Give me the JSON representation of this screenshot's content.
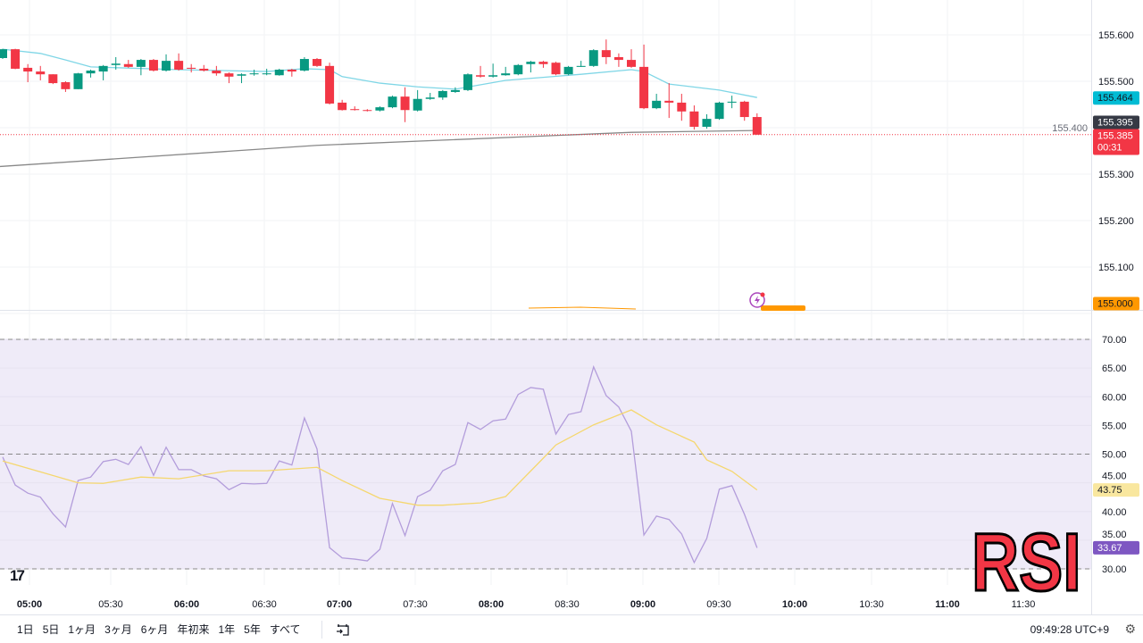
{
  "price_axis": {
    "ticks": [
      "155.600",
      "155.500",
      "155.400",
      "155.300",
      "155.200",
      "155.100",
      "155.000"
    ],
    "tick_values": [
      155.6,
      155.5,
      155.4,
      155.3,
      155.2,
      155.1,
      155.0
    ],
    "ma_fast_label": "155.464",
    "ma_slow_label": "155.395",
    "last_price_label": "155.385",
    "countdown": "00:31",
    "alert_label": "155.000"
  },
  "rsi_axis": {
    "ticks": [
      "70.00",
      "65.00",
      "60.00",
      "55.00",
      "50.00",
      "45.00",
      "40.00",
      "35.00",
      "30.00"
    ],
    "tick_values": [
      70,
      65,
      60,
      55,
      50,
      45,
      40,
      35,
      30
    ],
    "signal_label": "43.75",
    "rsi_label": "33.67"
  },
  "time_axis": [
    "05:00",
    "05:30",
    "06:00",
    "06:30",
    "07:00",
    "07:30",
    "08:00",
    "08:30",
    "09:00",
    "09:30",
    "10:00",
    "10:30",
    "11:00",
    "11:30"
  ],
  "bottom": {
    "ranges": [
      "1日",
      "5日",
      "1ヶ月",
      "3ヶ月",
      "6ヶ月",
      "年初来",
      "1年",
      "5年",
      "すべて"
    ],
    "clock": "09:49:28 UTC+9"
  },
  "overlay_text": "RSI",
  "logo": "TV",
  "colors": {
    "up": "#089981",
    "down": "#f23645",
    "ma_fast": "#7fd6e6",
    "ma_slow": "#888888",
    "rsi": "#b39ddb",
    "signal": "#f5d76e",
    "rsi_bg": "#efebf8",
    "alert": "#ff9800"
  },
  "chart_data": {
    "type": "candlestick",
    "ohlc": [
      [
        155.55,
        155.57,
        155.548,
        155.569
      ],
      [
        155.569,
        155.57,
        155.526,
        155.527
      ],
      [
        155.529,
        155.537,
        155.498,
        155.521
      ],
      [
        155.521,
        155.533,
        155.502,
        155.515
      ],
      [
        155.515,
        155.515,
        155.494,
        155.496
      ],
      [
        155.498,
        155.5,
        155.477,
        155.483
      ],
      [
        155.483,
        155.518,
        155.483,
        155.517
      ],
      [
        155.517,
        155.525,
        155.508,
        155.523
      ],
      [
        155.521,
        155.535,
        155.502,
        155.533
      ],
      [
        155.535,
        155.552,
        155.525,
        155.538
      ],
      [
        155.537,
        155.546,
        155.529,
        155.531
      ],
      [
        155.531,
        155.548,
        155.513,
        155.546
      ],
      [
        155.546,
        155.548,
        155.521,
        155.523
      ],
      [
        155.523,
        155.558,
        155.521,
        155.544
      ],
      [
        155.544,
        155.56,
        155.523,
        155.525
      ],
      [
        155.529,
        155.537,
        155.519,
        155.527
      ],
      [
        155.527,
        155.535,
        155.521,
        155.523
      ],
      [
        155.523,
        155.533,
        155.512,
        155.517
      ],
      [
        155.517,
        155.519,
        155.496,
        155.51
      ],
      [
        155.512,
        155.517,
        155.496,
        155.515
      ],
      [
        155.515,
        155.525,
        155.512,
        155.517
      ],
      [
        155.515,
        155.527,
        155.513,
        155.517
      ],
      [
        155.513,
        155.527,
        155.512,
        155.525
      ],
      [
        155.525,
        155.527,
        155.51,
        155.521
      ],
      [
        155.523,
        155.552,
        155.521,
        155.548
      ],
      [
        155.548,
        155.55,
        155.531,
        155.533
      ],
      [
        155.533,
        155.54,
        155.45,
        155.452
      ],
      [
        155.454,
        155.46,
        155.437,
        155.438
      ],
      [
        155.44,
        155.446,
        155.437,
        155.438
      ],
      [
        155.438,
        155.44,
        155.435,
        155.437
      ],
      [
        155.437,
        155.446,
        155.435,
        155.444
      ],
      [
        155.444,
        155.469,
        155.442,
        155.467
      ],
      [
        155.467,
        155.487,
        155.412,
        155.438
      ],
      [
        155.437,
        155.481,
        155.435,
        155.462
      ],
      [
        155.462,
        155.475,
        155.46,
        155.465
      ],
      [
        155.465,
        155.481,
        155.46,
        155.479
      ],
      [
        155.477,
        155.487,
        155.475,
        155.481
      ],
      [
        155.481,
        155.517,
        155.479,
        155.515
      ],
      [
        155.513,
        155.533,
        155.508,
        155.51
      ],
      [
        155.51,
        155.538,
        155.508,
        155.513
      ],
      [
        155.513,
        155.531,
        155.512,
        155.517
      ],
      [
        155.515,
        155.537,
        155.513,
        155.535
      ],
      [
        155.537,
        155.544,
        155.519,
        155.542
      ],
      [
        155.542,
        155.544,
        155.529,
        155.537
      ],
      [
        155.54,
        155.542,
        155.513,
        155.515
      ],
      [
        155.515,
        155.533,
        155.513,
        155.531
      ],
      [
        155.531,
        155.544,
        155.531,
        155.533
      ],
      [
        155.533,
        155.569,
        155.531,
        155.567
      ],
      [
        155.567,
        155.59,
        155.537,
        155.552
      ],
      [
        155.552,
        155.56,
        155.531,
        155.546
      ],
      [
        155.546,
        155.569,
        155.529,
        155.531
      ],
      [
        155.531,
        155.579,
        155.44,
        155.442
      ],
      [
        155.442,
        155.473,
        155.44,
        155.458
      ],
      [
        155.458,
        155.496,
        155.421,
        155.454
      ],
      [
        155.454,
        155.473,
        155.415,
        155.435
      ],
      [
        155.435,
        155.448,
        155.396,
        155.402
      ],
      [
        155.402,
        155.429,
        155.398,
        155.419
      ],
      [
        155.419,
        155.456,
        155.417,
        155.454
      ],
      [
        155.454,
        155.469,
        155.442,
        155.456
      ],
      [
        155.456,
        155.458,
        155.415,
        155.423
      ],
      [
        155.423,
        155.431,
        155.385,
        155.385
      ]
    ],
    "ma_fast": [
      [
        0,
        155.569
      ],
      [
        3,
        155.56
      ],
      [
        5,
        155.546
      ],
      [
        7,
        155.531
      ],
      [
        14,
        155.525
      ],
      [
        21,
        155.521
      ],
      [
        24,
        155.527
      ],
      [
        26,
        155.525
      ],
      [
        27,
        155.51
      ],
      [
        30,
        155.496
      ],
      [
        33,
        155.488
      ],
      [
        36,
        155.483
      ],
      [
        40,
        155.502
      ],
      [
        46,
        155.515
      ],
      [
        50,
        155.525
      ],
      [
        51,
        155.521
      ],
      [
        53,
        155.494
      ],
      [
        57,
        155.481
      ],
      [
        60,
        155.465
      ]
    ],
    "ma_slow": [
      [
        -1,
        155.315
      ],
      [
        25,
        155.362
      ],
      [
        50,
        155.39
      ],
      [
        60,
        155.394
      ]
    ],
    "rsi": [
      49.5,
      44.6,
      43.2,
      42.5,
      39.6,
      37.3,
      45.4,
      46.0,
      48.7,
      49.1,
      48.2,
      51.3,
      46.3,
      51.2,
      47.3,
      47.3,
      46.2,
      45.7,
      43.8,
      44.9,
      44.8,
      44.9,
      48.8,
      48.1,
      56.3,
      50.9,
      33.7,
      31.9,
      31.7,
      31.4,
      33.4,
      41.4,
      35.8,
      42.6,
      43.7,
      47.1,
      48.2,
      55.5,
      54.3,
      55.8,
      56.1,
      60.4,
      61.6,
      61.3,
      53.5,
      56.9,
      57.4,
      65.2,
      60.2,
      58.2,
      54.0,
      35.9,
      39.2,
      38.6,
      36.1,
      31.1,
      35.3,
      43.9,
      44.5,
      39.5,
      33.67
    ],
    "rsi_signal": [
      [
        0,
        48.8
      ],
      [
        3,
        46.9
      ],
      [
        6,
        45.0
      ],
      [
        8,
        44.9
      ],
      [
        11,
        46.0
      ],
      [
        14,
        45.7
      ],
      [
        18,
        47.1
      ],
      [
        21,
        47.1
      ],
      [
        25,
        47.7
      ],
      [
        27,
        45.4
      ],
      [
        30,
        42.3
      ],
      [
        33,
        41.1
      ],
      [
        35,
        41.1
      ],
      [
        38,
        41.5
      ],
      [
        40,
        42.6
      ],
      [
        43,
        49.3
      ],
      [
        44,
        51.6
      ],
      [
        47,
        55.1
      ],
      [
        50,
        57.7
      ],
      [
        52,
        55.1
      ],
      [
        55,
        52.1
      ],
      [
        56,
        49.0
      ],
      [
        58,
        47.0
      ],
      [
        60,
        43.75
      ]
    ],
    "rsi_levels": [
      70,
      50,
      30
    ],
    "price_range": [
      155.0,
      155.6
    ],
    "rsi_range": [
      30,
      70
    ]
  }
}
